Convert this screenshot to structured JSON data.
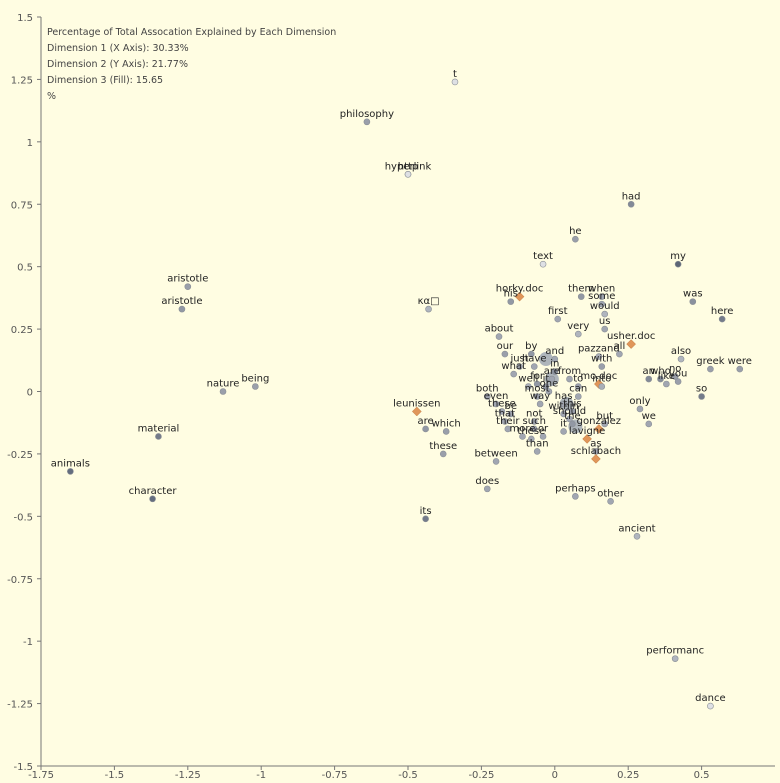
{
  "chart_data": {
    "type": "scatter",
    "title": "",
    "xlabel": "",
    "ylabel": "",
    "xlim": [
      -1.75,
      0.75
    ],
    "ylim": [
      -1.5,
      1.5
    ],
    "x_ticks": [
      -1.75,
      -1.5,
      -1.25,
      -1,
      -0.75,
      -0.5,
      -0.25,
      0,
      0.25,
      0.5
    ],
    "y_ticks": [
      -1.5,
      -1.25,
      -1,
      -0.75,
      -0.5,
      -0.25,
      0,
      0.25,
      0.5,
      0.75,
      1,
      1.25,
      1.5
    ],
    "x_tick_labels": [
      "-1.75",
      "-1.5",
      "-1.25",
      "-1",
      "-0.75",
      "-0.5",
      "-0.25",
      "0",
      "0.25",
      "0.5"
    ],
    "y_tick_labels": [
      "-1.5",
      "-1.25",
      "-1",
      "-0.75",
      "-0.5",
      "-0.25",
      "0",
      "0.25",
      "0.5",
      "0.75",
      "1",
      "1.25",
      "1.5"
    ],
    "grid": false,
    "legend": "none",
    "info_lines": [
      "Percentage of Total Assocation Explained by Each Dimension",
      "Dimension 1 (X Axis): 30.33%",
      "Dimension 2 (Y Axis): 21.77%",
      "Dimension 3 (Fill): 15.65",
      "%"
    ],
    "colors": {
      "background": "#fffde2",
      "word_point": "#8c949c",
      "document_point": "#e0965a"
    },
    "points": [
      {
        "label": "t",
        "x": -0.34,
        "y": 1.24,
        "kind": "word",
        "fill": 0.0
      },
      {
        "label": "philosophy",
        "x": -0.64,
        "y": 1.08,
        "kind": "word",
        "fill": 0.45
      },
      {
        "label": "http",
        "x": -0.5,
        "y": 0.87,
        "kind": "word",
        "fill": 0.0
      },
      {
        "label": "hyperlink",
        "x": -0.5,
        "y": 0.87,
        "kind": "word",
        "fill": 0.0
      },
      {
        "label": "had",
        "x": 0.26,
        "y": 0.75,
        "kind": "word",
        "fill": 0.6
      },
      {
        "label": "he",
        "x": 0.07,
        "y": 0.61,
        "kind": "word",
        "fill": 0.45
      },
      {
        "label": "text",
        "x": -0.04,
        "y": 0.51,
        "kind": "word",
        "fill": 0.0
      },
      {
        "label": "my",
        "x": 0.42,
        "y": 0.51,
        "kind": "word",
        "fill": 0.85
      },
      {
        "label": "aristotle",
        "x": -1.25,
        "y": 0.42,
        "kind": "word",
        "fill": 0.45
      },
      {
        "label": "aristotle",
        "x": -1.27,
        "y": 0.33,
        "kind": "word",
        "fill": 0.5
      },
      {
        "label": "κα□",
        "x": -0.43,
        "y": 0.33,
        "kind": "word",
        "fill": 0.3
      },
      {
        "label": "horky.doc",
        "x": -0.12,
        "y": 0.38,
        "kind": "doc",
        "fill": 0.0
      },
      {
        "label": "his",
        "x": -0.15,
        "y": 0.36,
        "kind": "word",
        "fill": 0.5
      },
      {
        "label": "them",
        "x": 0.09,
        "y": 0.38,
        "kind": "word",
        "fill": 0.5
      },
      {
        "label": "when",
        "x": 0.16,
        "y": 0.38,
        "kind": "word",
        "fill": 0.4
      },
      {
        "label": "some",
        "x": 0.16,
        "y": 0.35,
        "kind": "word",
        "fill": 0.4
      },
      {
        "label": "would",
        "x": 0.17,
        "y": 0.31,
        "kind": "word",
        "fill": 0.3
      },
      {
        "label": "was",
        "x": 0.47,
        "y": 0.36,
        "kind": "word",
        "fill": 0.55
      },
      {
        "label": "here",
        "x": 0.57,
        "y": 0.29,
        "kind": "word",
        "fill": 0.7
      },
      {
        "label": "first",
        "x": 0.01,
        "y": 0.29,
        "kind": "word",
        "fill": 0.4
      },
      {
        "label": "very",
        "x": 0.08,
        "y": 0.23,
        "kind": "word",
        "fill": 0.3
      },
      {
        "label": "us",
        "x": 0.17,
        "y": 0.25,
        "kind": "word",
        "fill": 0.4
      },
      {
        "label": "about",
        "x": -0.19,
        "y": 0.22,
        "kind": "word",
        "fill": 0.4
      },
      {
        "label": "usher.doc",
        "x": 0.26,
        "y": 0.19,
        "kind": "doc",
        "fill": 0.0
      },
      {
        "label": "by",
        "x": -0.08,
        "y": 0.15,
        "kind": "word",
        "fill": 0.5
      },
      {
        "label": "our",
        "x": -0.17,
        "y": 0.15,
        "kind": "word",
        "fill": 0.45
      },
      {
        "label": "and",
        "x": 0.0,
        "y": 0.13,
        "kind": "word",
        "fill": 0.4
      },
      {
        "label": "pazzand",
        "x": 0.15,
        "y": 0.14,
        "kind": "word",
        "fill": 0.35
      },
      {
        "label": "all",
        "x": 0.22,
        "y": 0.15,
        "kind": "word",
        "fill": 0.4
      },
      {
        "label": "also",
        "x": 0.43,
        "y": 0.13,
        "kind": "word",
        "fill": 0.3
      },
      {
        "label": "greek",
        "x": 0.53,
        "y": 0.09,
        "kind": "word",
        "fill": 0.45
      },
      {
        "label": "were",
        "x": 0.63,
        "y": 0.09,
        "kind": "word",
        "fill": 0.45
      },
      {
        "label": "just",
        "x": -0.12,
        "y": 0.1,
        "kind": "word",
        "fill": 0.4
      },
      {
        "label": "have",
        "x": -0.07,
        "y": 0.1,
        "kind": "word",
        "fill": 0.4
      },
      {
        "label": "what",
        "x": -0.14,
        "y": 0.07,
        "kind": "word",
        "fill": 0.4
      },
      {
        "label": "in",
        "x": 0.0,
        "y": 0.08,
        "kind": "word",
        "fill": 0.55
      },
      {
        "label": "with",
        "x": 0.16,
        "y": 0.1,
        "kind": "word",
        "fill": 0.45
      },
      {
        "label": "are",
        "x": -0.01,
        "y": 0.05,
        "kind": "word",
        "fill": 0.4
      },
      {
        "label": "from",
        "x": 0.05,
        "y": 0.05,
        "kind": "word",
        "fill": 0.4
      },
      {
        "label": "mo.doc",
        "x": 0.15,
        "y": 0.03,
        "kind": "doc",
        "fill": 0.0
      },
      {
        "label": "who",
        "x": 0.36,
        "y": 0.05,
        "kind": "word",
        "fill": 0.6
      },
      {
        "label": "no",
        "x": 0.41,
        "y": 0.06,
        "kind": "word",
        "fill": 0.45
      },
      {
        "label": "an",
        "x": 0.32,
        "y": 0.05,
        "kind": "word",
        "fill": 0.6
      },
      {
        "label": "like",
        "x": 0.38,
        "y": 0.03,
        "kind": "word",
        "fill": 0.4
      },
      {
        "label": "you",
        "x": 0.42,
        "y": 0.04,
        "kind": "word",
        "fill": 0.45
      },
      {
        "label": "well",
        "x": -0.09,
        "y": 0.02,
        "kind": "word",
        "fill": 0.35
      },
      {
        "label": "for",
        "x": -0.06,
        "y": 0.03,
        "kind": "word",
        "fill": 0.5
      },
      {
        "label": "it",
        "x": -0.03,
        "y": 0.02,
        "kind": "word",
        "fill": 0.5
      },
      {
        "label": "to",
        "x": 0.08,
        "y": 0.02,
        "kind": "word",
        "fill": 0.45
      },
      {
        "label": "into",
        "x": 0.16,
        "y": 0.02,
        "kind": "word",
        "fill": 0.35
      },
      {
        "label": "one",
        "x": -0.02,
        "y": 0.0,
        "kind": "word",
        "fill": 0.4
      },
      {
        "label": "can",
        "x": 0.08,
        "y": -0.02,
        "kind": "word",
        "fill": 0.4
      },
      {
        "label": "so",
        "x": 0.5,
        "y": -0.02,
        "kind": "word",
        "fill": 0.7
      },
      {
        "label": "both",
        "x": -0.23,
        "y": -0.02,
        "kind": "word",
        "fill": 0.4
      },
      {
        "label": "most",
        "x": -0.06,
        "y": -0.02,
        "kind": "word",
        "fill": 0.45
      },
      {
        "label": "even",
        "x": -0.2,
        "y": -0.05,
        "kind": "word",
        "fill": 0.4
      },
      {
        "label": "way",
        "x": -0.05,
        "y": -0.05,
        "kind": "word",
        "fill": 0.4
      },
      {
        "label": "has",
        "x": 0.03,
        "y": -0.05,
        "kind": "word",
        "fill": 0.4
      },
      {
        "label": "only",
        "x": 0.29,
        "y": -0.07,
        "kind": "word",
        "fill": 0.4
      },
      {
        "label": "leunissen",
        "x": -0.47,
        "y": -0.08,
        "kind": "doc",
        "fill": 0.0
      },
      {
        "label": "these",
        "x": -0.18,
        "y": -0.08,
        "kind": "word",
        "fill": 0.4
      },
      {
        "label": "be",
        "x": -0.15,
        "y": -0.09,
        "kind": "word",
        "fill": 0.4
      },
      {
        "label": "this",
        "x": 0.06,
        "y": -0.08,
        "kind": "word",
        "fill": 0.45
      },
      {
        "label": "within",
        "x": 0.03,
        "y": -0.09,
        "kind": "word",
        "fill": 0.4
      },
      {
        "label": "that",
        "x": -0.17,
        "y": -0.12,
        "kind": "word",
        "fill": 0.4
      },
      {
        "label": "should",
        "x": 0.05,
        "y": -0.11,
        "kind": "word",
        "fill": 0.4
      },
      {
        "label": "not",
        "x": -0.07,
        "y": -0.12,
        "kind": "word",
        "fill": 0.4
      },
      {
        "label": "we",
        "x": 0.32,
        "y": -0.13,
        "kind": "word",
        "fill": 0.4
      },
      {
        "label": "the",
        "x": 0.06,
        "y": -0.13,
        "kind": "word",
        "fill": 0.5
      },
      {
        "label": "but",
        "x": 0.17,
        "y": -0.13,
        "kind": "word",
        "fill": 0.4
      },
      {
        "label": "their",
        "x": -0.16,
        "y": -0.15,
        "kind": "word",
        "fill": 0.4
      },
      {
        "label": "are",
        "x": -0.44,
        "y": -0.15,
        "kind": "word",
        "fill": 0.5
      },
      {
        "label": "which",
        "x": -0.37,
        "y": -0.16,
        "kind": "word",
        "fill": 0.45
      },
      {
        "label": "such",
        "x": -0.07,
        "y": -0.15,
        "kind": "word",
        "fill": 0.4
      },
      {
        "label": "it",
        "x": 0.03,
        "y": -0.16,
        "kind": "word",
        "fill": 0.4
      },
      {
        "label": "gonzalez",
        "x": 0.15,
        "y": -0.15,
        "kind": "doc",
        "fill": 0.0
      },
      {
        "label": "more",
        "x": -0.11,
        "y": -0.18,
        "kind": "word",
        "fill": 0.4
      },
      {
        "label": "or",
        "x": -0.04,
        "y": -0.18,
        "kind": "word",
        "fill": 0.4
      },
      {
        "label": "these",
        "x": -0.08,
        "y": -0.19,
        "kind": "word",
        "fill": 0.4
      },
      {
        "label": "lavigne",
        "x": 0.11,
        "y": -0.19,
        "kind": "doc",
        "fill": 0.0
      },
      {
        "label": "as",
        "x": 0.14,
        "y": -0.24,
        "kind": "word",
        "fill": 0.4
      },
      {
        "label": "than",
        "x": -0.06,
        "y": -0.24,
        "kind": "word",
        "fill": 0.4
      },
      {
        "label": "these",
        "x": -0.38,
        "y": -0.25,
        "kind": "word",
        "fill": 0.45
      },
      {
        "label": "between",
        "x": -0.2,
        "y": -0.28,
        "kind": "word",
        "fill": 0.4
      },
      {
        "label": "schlabach",
        "x": 0.14,
        "y": -0.27,
        "kind": "doc",
        "fill": 0.0
      },
      {
        "label": "does",
        "x": -0.23,
        "y": -0.39,
        "kind": "word",
        "fill": 0.4
      },
      {
        "label": "perhaps",
        "x": 0.07,
        "y": -0.42,
        "kind": "word",
        "fill": 0.4
      },
      {
        "label": "other",
        "x": 0.19,
        "y": -0.44,
        "kind": "word",
        "fill": 0.4
      },
      {
        "label": "its",
        "x": -0.44,
        "y": -0.51,
        "kind": "word",
        "fill": 0.7
      },
      {
        "label": "ancient",
        "x": 0.28,
        "y": -0.58,
        "kind": "word",
        "fill": 0.3
      },
      {
        "label": "nature",
        "x": -1.13,
        "y": 0.0,
        "kind": "word",
        "fill": 0.45
      },
      {
        "label": "being",
        "x": -1.02,
        "y": 0.02,
        "kind": "word",
        "fill": 0.45
      },
      {
        "label": "material",
        "x": -1.35,
        "y": -0.18,
        "kind": "word",
        "fill": 0.7
      },
      {
        "label": "animals",
        "x": -1.65,
        "y": -0.32,
        "kind": "word",
        "fill": 0.8
      },
      {
        "label": "character",
        "x": -1.37,
        "y": -0.43,
        "kind": "word",
        "fill": 0.8
      },
      {
        "label": "performanc",
        "x": 0.41,
        "y": -1.07,
        "kind": "word",
        "fill": 0.3
      },
      {
        "label": "dance",
        "x": 0.53,
        "y": -1.26,
        "kind": "word",
        "fill": 0.0
      }
    ],
    "large_markers": [
      {
        "x": -0.03,
        "y": 0.13
      },
      {
        "x": -0.01,
        "y": 0.05
      },
      {
        "x": 0.07,
        "y": -0.14
      },
      {
        "x": 0.04,
        "y": -0.05
      }
    ]
  }
}
